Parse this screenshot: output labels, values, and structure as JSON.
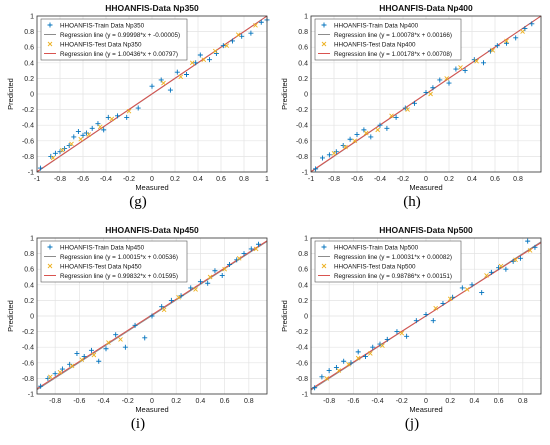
{
  "chart_data": [
    {
      "type": "scatter",
      "title": "HHOANFIS-Data Np350",
      "xlabel": "Measured",
      "ylabel": "Predicted",
      "caption": "(g)",
      "xlim": [
        -1,
        1
      ],
      "ylim": [
        -1,
        1
      ],
      "xticks": [
        "-1",
        "-0.8",
        "-0.6",
        "-0.4",
        "-0.2",
        "0",
        "0.2",
        "0.4",
        "0.6",
        "0.8",
        "1"
      ],
      "yticks": [
        "-1",
        "-0.8",
        "-0.6",
        "-0.4",
        "-0.2",
        "0",
        "0.2",
        "0.4",
        "0.6",
        "0.8",
        "1"
      ],
      "grid": true,
      "legend_position": "top-left",
      "series": [
        {
          "name": "HHOANFIS-Train Data Np350",
          "kind": "train",
          "color": "#0072bd",
          "x": [
            -0.97,
            -0.88,
            -0.84,
            -0.8,
            -0.76,
            -0.72,
            -0.68,
            -0.64,
            -0.6,
            -0.57,
            -0.52,
            -0.47,
            -0.42,
            -0.38,
            -0.3,
            -0.22,
            -0.12,
            0.0,
            0.08,
            0.16,
            0.22,
            0.3,
            0.38,
            0.42,
            0.5,
            0.56,
            0.62,
            0.7,
            0.78,
            0.86,
            0.95,
            1.0
          ],
          "y": [
            -0.95,
            -0.8,
            -0.76,
            -0.74,
            -0.7,
            -0.66,
            -0.55,
            -0.48,
            -0.53,
            -0.5,
            -0.44,
            -0.38,
            -0.46,
            -0.3,
            -0.28,
            -0.3,
            -0.18,
            0.1,
            0.18,
            0.05,
            0.28,
            0.25,
            0.4,
            0.5,
            0.44,
            0.52,
            0.62,
            0.68,
            0.74,
            0.78,
            0.92,
            0.95
          ]
        },
        {
          "name": "Regression line (y = 0.99998*x + -0.00005)",
          "kind": "line",
          "color": "#8c8c8c",
          "slope": 0.99998,
          "intercept": -5e-05
        },
        {
          "name": "HHOANFIS-Test Data Np350",
          "kind": "test",
          "color": "#edb120",
          "x": [
            -0.86,
            -0.78,
            -0.7,
            -0.62,
            -0.55,
            -0.45,
            -0.35,
            -0.2,
            0.1,
            0.25,
            0.35,
            0.45,
            0.55,
            0.65,
            0.75,
            0.9
          ],
          "y": [
            -0.82,
            -0.72,
            -0.64,
            -0.58,
            -0.52,
            -0.42,
            -0.32,
            -0.22,
            0.14,
            0.22,
            0.4,
            0.44,
            0.55,
            0.62,
            0.76,
            0.88
          ]
        },
        {
          "name": "Regression line (y = 1.00436*x + 0.00797)",
          "kind": "line",
          "color": "#d9534f",
          "slope": 1.00436,
          "intercept": 0.00797
        }
      ]
    },
    {
      "type": "scatter",
      "title": "HHOANFIS-Data Np400",
      "xlabel": "Measured",
      "ylabel": "Predicted",
      "caption": "(h)",
      "xlim": [
        -1,
        1
      ],
      "ylim": [
        -1,
        1
      ],
      "xticks": [
        "-1",
        "-0.8",
        "-0.6",
        "-0.4",
        "-0.2",
        "0",
        "0.2",
        "0.4",
        "0.6",
        "0.8"
      ],
      "yticks": [
        "-1",
        "-0.8",
        "-0.6",
        "-0.4",
        "-0.2",
        "0",
        "0.2",
        "0.4",
        "0.6",
        "0.8",
        "1"
      ],
      "grid": true,
      "legend_position": "top-left",
      "series": [
        {
          "name": "HHOANFIS-Train Data Np400",
          "kind": "train",
          "color": "#0072bd",
          "x": [
            -0.96,
            -0.9,
            -0.84,
            -0.78,
            -0.72,
            -0.66,
            -0.6,
            -0.54,
            -0.48,
            -0.4,
            -0.34,
            -0.26,
            -0.18,
            -0.1,
            0.0,
            0.06,
            0.12,
            0.2,
            0.26,
            0.34,
            0.42,
            0.5,
            0.56,
            0.62,
            0.7,
            0.78,
            0.86,
            0.92
          ],
          "y": [
            -0.96,
            -0.82,
            -0.78,
            -0.74,
            -0.66,
            -0.58,
            -0.52,
            -0.46,
            -0.55,
            -0.4,
            -0.44,
            -0.3,
            -0.18,
            -0.12,
            0.02,
            0.08,
            0.18,
            0.14,
            0.32,
            0.3,
            0.44,
            0.4,
            0.55,
            0.62,
            0.65,
            0.72,
            0.84,
            0.9
          ]
        },
        {
          "name": "Regression line (y = 1.00078*x + 0.00166)",
          "kind": "line",
          "color": "#8c8c8c",
          "slope": 1.00078,
          "intercept": 0.00166
        },
        {
          "name": "HHOANFIS-Test Data Np400",
          "kind": "test",
          "color": "#edb120",
          "x": [
            -0.8,
            -0.7,
            -0.62,
            -0.52,
            -0.42,
            -0.3,
            -0.16,
            0.04,
            0.18,
            0.3,
            0.44,
            0.58,
            0.7,
            0.84
          ],
          "y": [
            -0.76,
            -0.68,
            -0.6,
            -0.5,
            -0.46,
            -0.28,
            -0.2,
            0.0,
            0.2,
            0.34,
            0.42,
            0.56,
            0.68,
            0.8
          ]
        },
        {
          "name": "Regression line (y = 1.00178*x + 0.00708)",
          "kind": "line",
          "color": "#d9534f",
          "slope": 1.00178,
          "intercept": 0.00708
        }
      ]
    },
    {
      "type": "scatter",
      "title": "HHOANFIS-Data Np450",
      "xlabel": "Measured",
      "ylabel": "Predicted",
      "caption": "(i)",
      "xlim": [
        -0.95,
        0.95
      ],
      "ylim": [
        -1,
        1
      ],
      "xticks": [
        "-0.8",
        "-0.6",
        "-0.4",
        "-0.2",
        "0",
        "0.2",
        "0.4",
        "0.6",
        "0.8"
      ],
      "yticks": [
        "-1",
        "-0.8",
        "-0.6",
        "-0.4",
        "-0.2",
        "0",
        "0.2",
        "0.4",
        "0.6",
        "0.8",
        "1"
      ],
      "grid": true,
      "legend_position": "top-left",
      "series": [
        {
          "name": "HHOANFIS-Train Data Np450",
          "kind": "train",
          "color": "#0072bd",
          "x": [
            -0.92,
            -0.86,
            -0.8,
            -0.74,
            -0.68,
            -0.62,
            -0.56,
            -0.5,
            -0.44,
            -0.38,
            -0.3,
            -0.22,
            -0.14,
            -0.06,
            0.0,
            0.08,
            0.16,
            0.24,
            0.32,
            0.4,
            0.46,
            0.52,
            0.58,
            0.64,
            0.7,
            0.76,
            0.82,
            0.88
          ],
          "y": [
            -0.9,
            -0.8,
            -0.74,
            -0.68,
            -0.62,
            -0.48,
            -0.52,
            -0.44,
            -0.58,
            -0.42,
            -0.24,
            -0.4,
            -0.12,
            -0.28,
            0.0,
            0.12,
            0.2,
            0.26,
            0.36,
            0.44,
            0.42,
            0.58,
            0.52,
            0.66,
            0.72,
            0.8,
            0.86,
            0.92
          ]
        },
        {
          "name": "Regression line (y = 1.00015*x + 0.00536)",
          "kind": "line",
          "color": "#8c8c8c",
          "slope": 1.00015,
          "intercept": 0.00536
        },
        {
          "name": "HHOANFIS-Test Data Np450",
          "kind": "test",
          "color": "#edb120",
          "x": [
            -0.84,
            -0.76,
            -0.66,
            -0.58,
            -0.48,
            -0.36,
            -0.26,
            0.1,
            0.22,
            0.36,
            0.48,
            0.6,
            0.72,
            0.86
          ],
          "y": [
            -0.78,
            -0.72,
            -0.64,
            -0.56,
            -0.5,
            -0.34,
            -0.3,
            0.08,
            0.24,
            0.34,
            0.5,
            0.6,
            0.74,
            0.86
          ]
        },
        {
          "name": "Regression line (y = 0.99832*x + 0.01595)",
          "kind": "line",
          "color": "#d9534f",
          "slope": 0.99832,
          "intercept": 0.01595
        }
      ]
    },
    {
      "type": "scatter",
      "title": "HHOANFIS-Data Np500",
      "xlabel": "Measured",
      "ylabel": "Predicted",
      "caption": "(j)",
      "xlim": [
        -0.95,
        0.95
      ],
      "ylim": [
        -1,
        1
      ],
      "xticks": [
        "-0.8",
        "-0.6",
        "-0.4",
        "-0.2",
        "0",
        "0.2",
        "0.4",
        "0.6",
        "0.8"
      ],
      "yticks": [
        "-1",
        "-0.8",
        "-0.6",
        "-0.4",
        "-0.2",
        "0",
        "0.2",
        "0.4",
        "0.6",
        "0.8",
        "1"
      ],
      "grid": true,
      "legend_position": "top-left",
      "series": [
        {
          "name": "HHOANFIS-Train Data Np500",
          "kind": "train",
          "color": "#0072bd",
          "x": [
            -0.92,
            -0.86,
            -0.8,
            -0.74,
            -0.68,
            -0.62,
            -0.56,
            -0.5,
            -0.44,
            -0.38,
            -0.32,
            -0.24,
            -0.16,
            -0.08,
            0.0,
            0.06,
            0.14,
            0.22,
            0.3,
            0.38,
            0.46,
            0.54,
            0.6,
            0.66,
            0.72,
            0.78,
            0.84,
            0.9
          ],
          "y": [
            -0.92,
            -0.78,
            -0.7,
            -0.66,
            -0.58,
            -0.6,
            -0.46,
            -0.52,
            -0.4,
            -0.36,
            -0.3,
            -0.2,
            -0.26,
            -0.06,
            0.02,
            -0.06,
            0.16,
            0.24,
            0.36,
            0.4,
            0.3,
            0.56,
            0.62,
            0.6,
            0.7,
            0.74,
            0.96,
            0.88
          ]
        },
        {
          "name": "Regression line (y = 1.00031*x + 0.00082)",
          "kind": "line",
          "color": "#8c8c8c",
          "slope": 1.00031,
          "intercept": 0.00082
        },
        {
          "name": "HHOANFIS-Test Data Np500",
          "kind": "test",
          "color": "#edb120",
          "x": [
            -0.82,
            -0.72,
            -0.64,
            -0.56,
            -0.46,
            -0.36,
            -0.2,
            0.08,
            0.2,
            0.34,
            0.5,
            0.62,
            0.74,
            0.86
          ],
          "y": [
            -0.8,
            -0.7,
            -0.62,
            -0.54,
            -0.48,
            -0.38,
            -0.22,
            0.1,
            0.22,
            0.34,
            0.52,
            0.64,
            0.72,
            0.84
          ]
        },
        {
          "name": "Regression line (y = 0.98786*x + 0.00151)",
          "kind": "line",
          "color": "#d9534f",
          "slope": 0.98786,
          "intercept": 0.00151
        }
      ]
    }
  ]
}
